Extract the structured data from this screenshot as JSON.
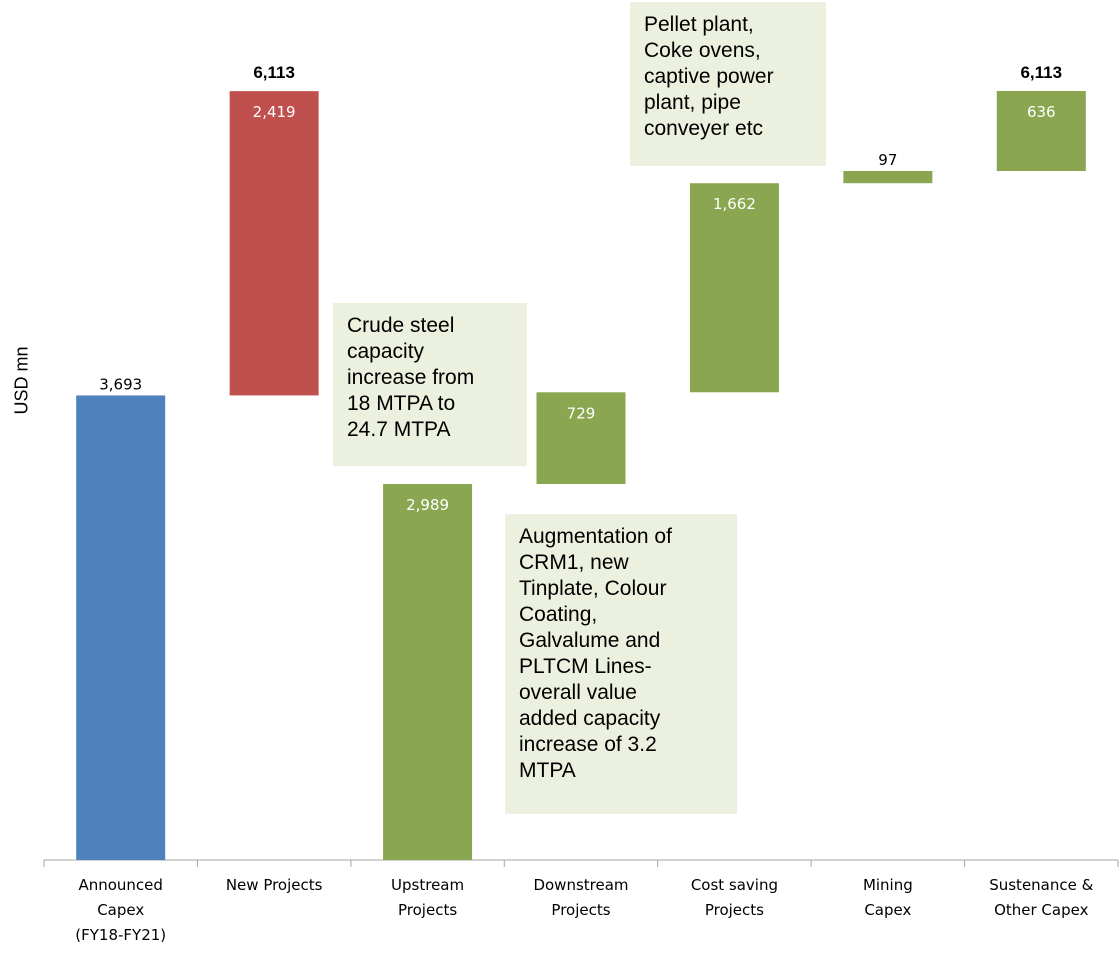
{
  "chart_data": {
    "type": "bar",
    "subtype": "waterfall",
    "ylabel": "USD mn",
    "categories": [
      "Announced Capex (FY18-FY21)",
      "New Projects",
      "Upstream Projects",
      "Downstream Projects",
      "Cost saving Projects",
      "Mining Capex",
      "Sustenance & Other Capex"
    ],
    "category_lines": [
      [
        "Announced",
        "Capex",
        "(FY18-FY21)"
      ],
      [
        "New Projects"
      ],
      [
        "Upstream",
        "Projects"
      ],
      [
        "Downstream",
        "Projects"
      ],
      [
        "Cost saving",
        "Projects"
      ],
      [
        "Mining",
        "Capex"
      ],
      [
        "Sustenance &",
        "Other Capex"
      ]
    ],
    "bars": [
      {
        "base": 0,
        "value": 3693,
        "label": "3,693",
        "color": "#4f81bd",
        "label_pos": "above"
      },
      {
        "base": 3693,
        "value": 2419,
        "label": "2,419",
        "color": "#c0504d",
        "label_pos": "inside",
        "total_label": "6,113"
      },
      {
        "base": 0,
        "value": 2989,
        "label": "2,989",
        "color": "#8aa650",
        "label_pos": "inside"
      },
      {
        "base": 2989,
        "value": 729,
        "label": "729",
        "color": "#8aa650",
        "label_pos": "inside"
      },
      {
        "base": 3718,
        "value": 1662,
        "label": "1,662",
        "color": "#8aa650",
        "label_pos": "inside"
      },
      {
        "base": 5380,
        "value": 97,
        "label": "97",
        "color": "#8aa650",
        "label_pos": "above"
      },
      {
        "base": 5477,
        "value": 636,
        "label": "636",
        "color": "#8aa650",
        "label_pos": "inside",
        "total_label": "6,113"
      }
    ],
    "ylim": [
      0,
      6113
    ],
    "grid": false,
    "legend": "none",
    "annotations": {
      "crude": [
        "Crude steel",
        "capacity",
        "increase from",
        "18 MTPA to",
        "24.7 MTPA"
      ],
      "downstream": [
        "Augmentation of",
        "CRM1, new",
        "Tinplate, Colour",
        "Coating,",
        "Galvalume and",
        "PLTCM Lines-",
        "overall value",
        "added capacity",
        "increase of 3.2",
        "MTPA"
      ],
      "pellet": [
        "Pellet plant,",
        "Coke ovens,",
        "captive power",
        "plant, pipe",
        "conveyer etc"
      ]
    }
  }
}
